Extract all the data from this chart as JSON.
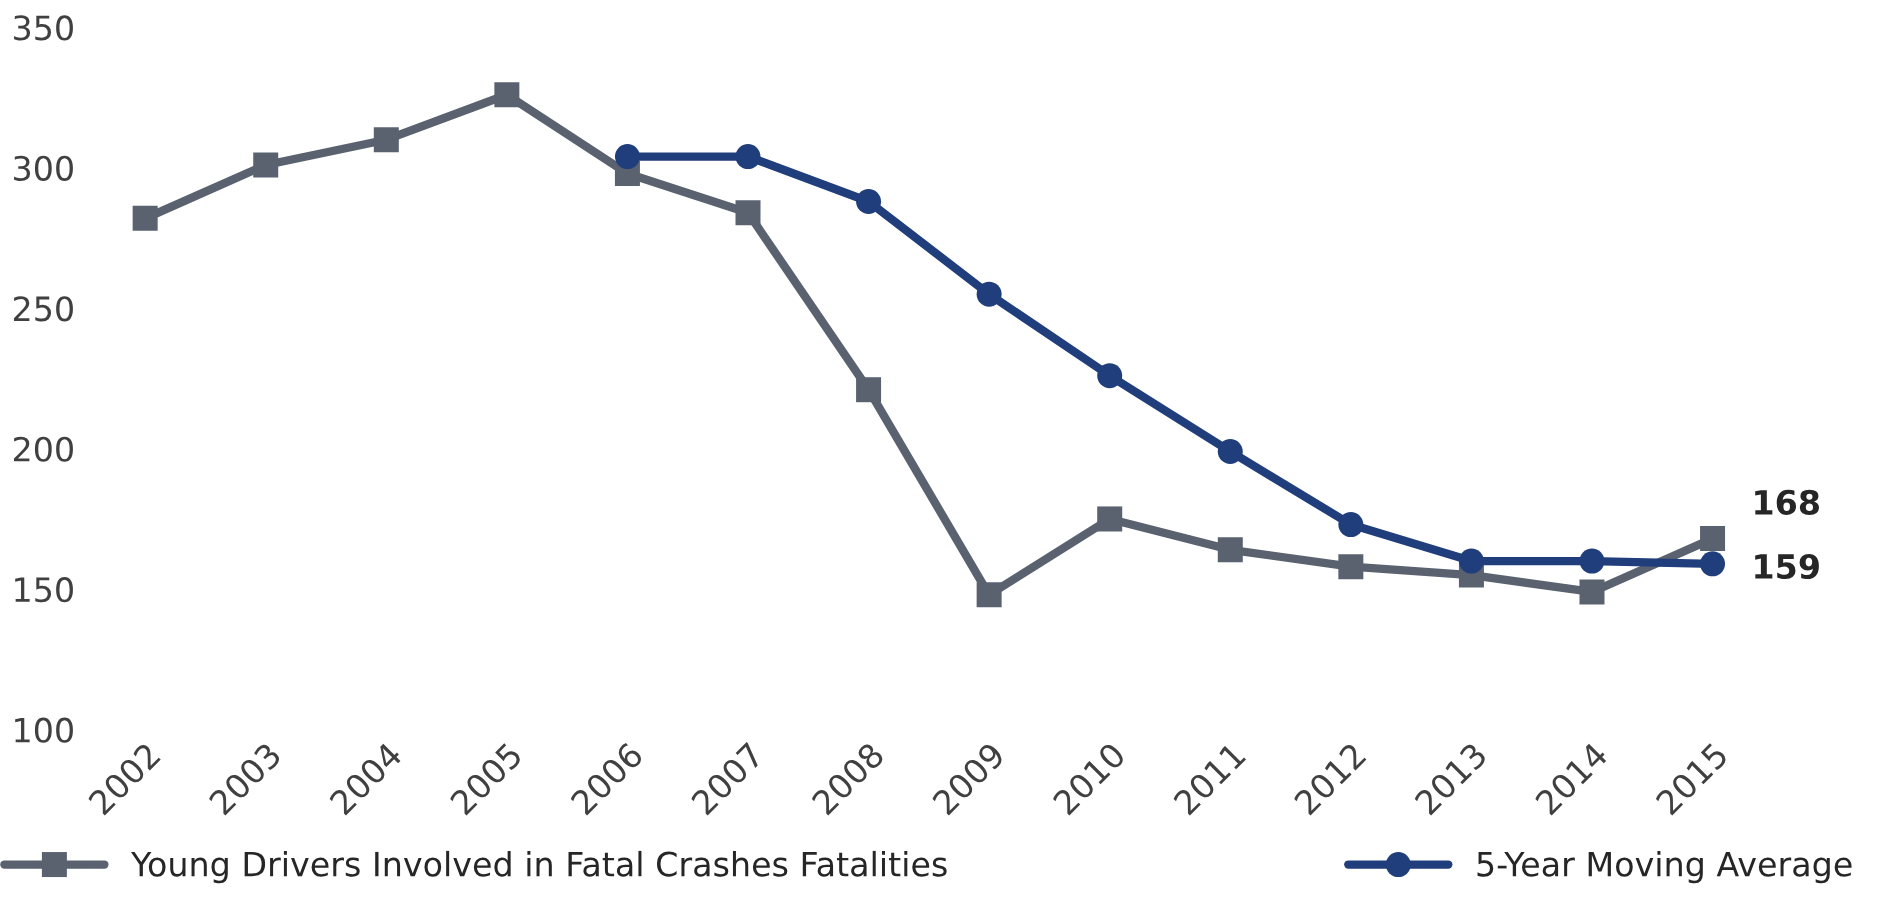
{
  "chart_data": {
    "type": "line",
    "categories": [
      "2002",
      "2003",
      "2004",
      "2005",
      "2006",
      "2007",
      "2008",
      "2009",
      "2010",
      "2011",
      "2012",
      "2013",
      "2014",
      "2015"
    ],
    "series": [
      {
        "name": "Young Drivers Involved in Fatal Crashes Fatalities",
        "color": "#5a6270",
        "marker": "square",
        "values": [
          282,
          301,
          310,
          326,
          298,
          284,
          221,
          148,
          175,
          164,
          158,
          155,
          149,
          168
        ],
        "value_labels": [
          null,
          null,
          null,
          null,
          null,
          null,
          null,
          null,
          null,
          null,
          null,
          null,
          null,
          "168"
        ]
      },
      {
        "name": "5-Year Moving Average",
        "color": "#203e7c",
        "marker": "circle",
        "values": [
          null,
          null,
          null,
          null,
          304,
          304,
          288,
          255,
          226,
          199,
          173,
          160,
          160,
          159
        ],
        "value_labels": [
          null,
          null,
          null,
          null,
          null,
          null,
          null,
          null,
          null,
          null,
          null,
          null,
          null,
          "159"
        ]
      }
    ],
    "ylim": [
      100,
      350
    ],
    "yticks": [
      100,
      150,
      200,
      250,
      300,
      350
    ],
    "grid": false,
    "legend": "bottom",
    "line_style": "solid"
  }
}
